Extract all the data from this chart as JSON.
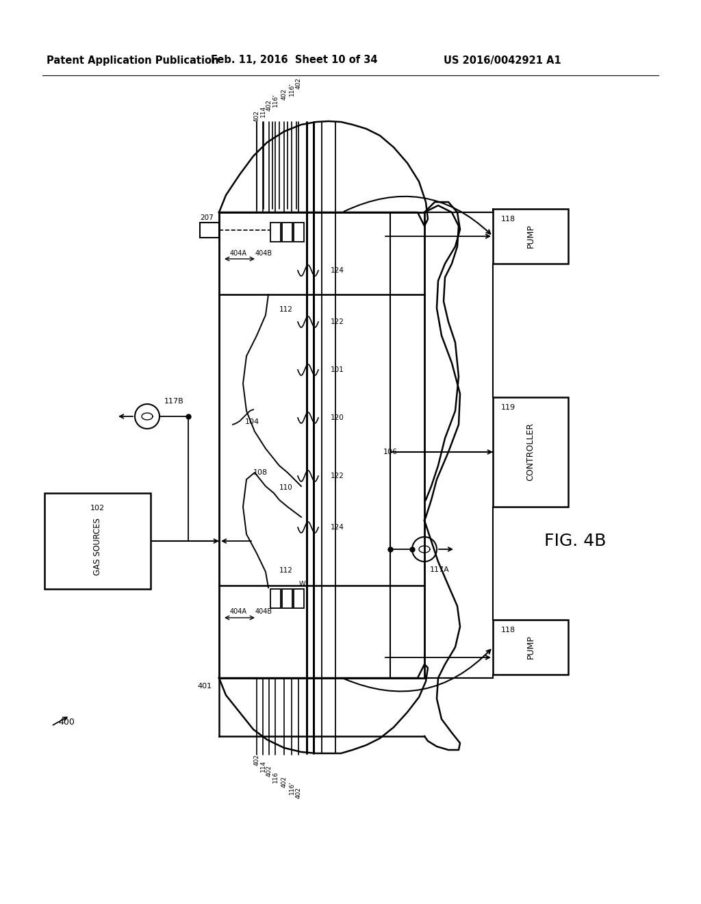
{
  "bg_color": "#ffffff",
  "text_color": "#000000",
  "header_left": "Patent Application Publication",
  "header_center": "Feb. 11, 2016  Sheet 10 of 34",
  "header_right": "US 2016/0042921 A1"
}
